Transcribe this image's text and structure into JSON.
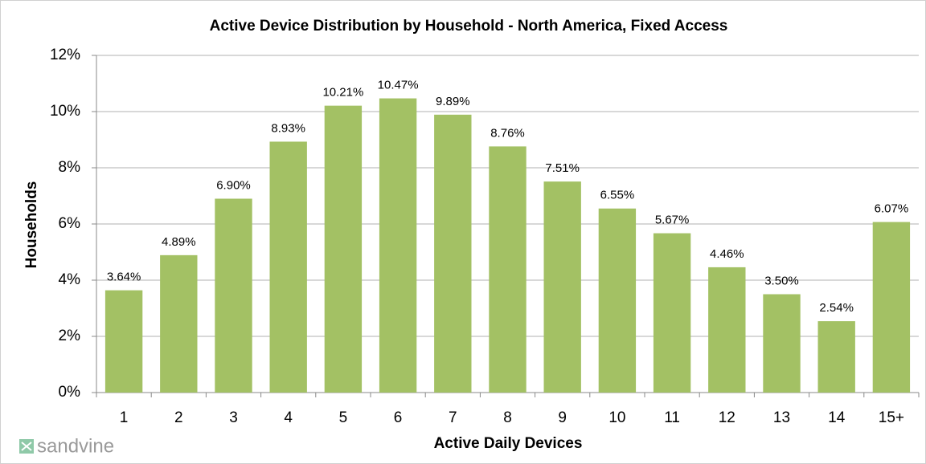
{
  "chart_data": {
    "type": "bar",
    "title": "Active Device Distribution by Household  - North America, Fixed Access",
    "x_label": "Active Daily Devices",
    "y_label": "Households",
    "watermark": "sandvine",
    "categories": [
      "1",
      "2",
      "3",
      "4",
      "5",
      "6",
      "7",
      "8",
      "9",
      "10",
      "11",
      "12",
      "13",
      "14",
      "15+"
    ],
    "values": [
      3.64,
      4.89,
      6.9,
      8.93,
      10.21,
      10.47,
      9.89,
      8.76,
      7.51,
      6.55,
      5.67,
      4.46,
      3.5,
      2.54,
      6.07
    ],
    "value_labels": [
      "3.64%",
      "4.89%",
      "6.90%",
      "8.93%",
      "10.21%",
      "10.47%",
      "9.89%",
      "8.76%",
      "7.51%",
      "6.55%",
      "5.67%",
      "4.46%",
      "3.50%",
      "2.54%",
      "6.07%"
    ],
    "color": "#a3c164",
    "ylim": [
      0,
      12
    ],
    "yticks": [
      {
        "value": 0,
        "label": "0%"
      },
      {
        "value": 2,
        "label": "2%"
      },
      {
        "value": 4,
        "label": "4%"
      },
      {
        "value": 6,
        "label": "6%"
      },
      {
        "value": 8,
        "label": "8%"
      },
      {
        "value": 10,
        "label": "10%"
      },
      {
        "value": 12,
        "label": "12%"
      }
    ],
    "grid": true
  }
}
